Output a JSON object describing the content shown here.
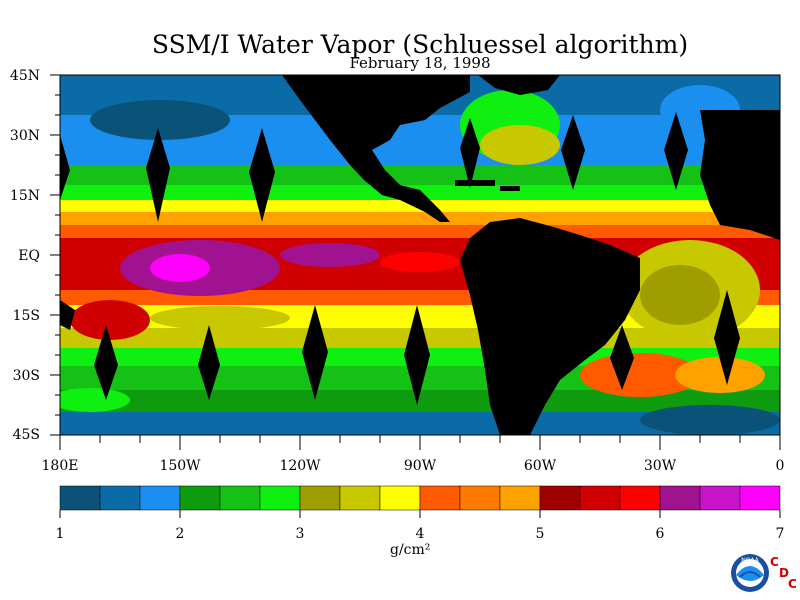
{
  "title": "SSM/I Water Vapor (Schluessel algorithm)",
  "subtitle": "February 18, 1998",
  "lat_labels": [
    "45N",
    "30N",
    "15N",
    "EQ",
    "15S",
    "30S",
    "45S"
  ],
  "lon_labels": [
    "180E",
    "150W",
    "120W",
    "90W",
    "60W",
    "30W",
    "0"
  ],
  "colorbar": {
    "ticks": [
      "1",
      "2",
      "3",
      "4",
      "5",
      "6",
      "7"
    ],
    "unit": "g/cm²",
    "colors": [
      "#0b5278",
      "#0a6ba6",
      "#1a8ff0",
      "#0e9b0e",
      "#14c114",
      "#10f010",
      "#9e9e00",
      "#c8c800",
      "#ffff00",
      "#ff5a00",
      "#ff7b00",
      "#ffa200",
      "#a00000",
      "#d00000",
      "#ff0000",
      "#a0128f",
      "#c813c8",
      "#ff00ff"
    ]
  },
  "logo": {
    "noaa": "NOAA",
    "c": "C",
    "d": "D",
    "c2": "C"
  }
}
